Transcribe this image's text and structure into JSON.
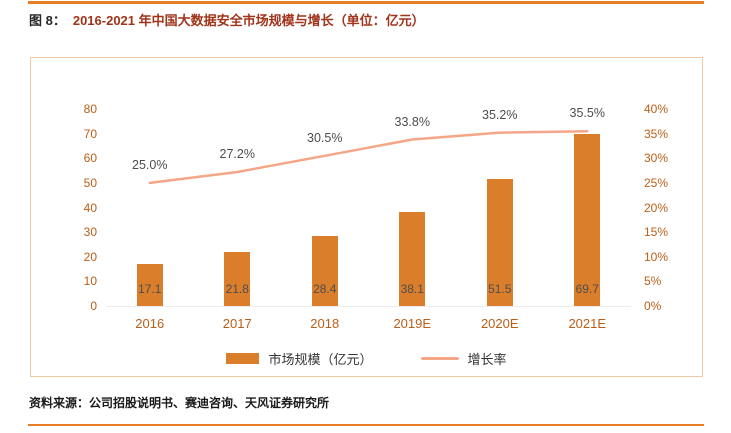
{
  "header": {
    "fig_label": "图 8：",
    "title": "2016-2021 年中国大数据安全市场规模与增长（单位：亿元）"
  },
  "chart_data": {
    "type": "bar+line",
    "title": "2016-2021 年中国大数据安全市场规模与增长（单位：亿元）",
    "categories": [
      "2016",
      "2017",
      "2018",
      "2019E",
      "2020E",
      "2021E"
    ],
    "series": [
      {
        "name": "市场规模（亿元）",
        "type": "bar",
        "axis": "left",
        "values": [
          17.1,
          21.8,
          28.4,
          38.1,
          51.5,
          69.7
        ],
        "labels": [
          "17.1",
          "21.8",
          "28.4",
          "38.1",
          "51.5",
          "69.7"
        ]
      },
      {
        "name": "增长率",
        "type": "line",
        "axis": "right",
        "values": [
          25.0,
          27.2,
          30.5,
          33.8,
          35.2,
          35.5
        ],
        "labels": [
          "25.0%",
          "27.2%",
          "30.5%",
          "33.8%",
          "35.2%",
          "35.5%"
        ]
      }
    ],
    "left_axis": {
      "min": 0,
      "max": 80,
      "step": 10,
      "ticks": [
        "0",
        "10",
        "20",
        "30",
        "40",
        "50",
        "60",
        "70",
        "80"
      ]
    },
    "right_axis": {
      "min": 0,
      "max": 40,
      "step": 5,
      "ticks": [
        "0%",
        "5%",
        "10%",
        "15%",
        "20%",
        "25%",
        "30%",
        "35%",
        "40%"
      ]
    },
    "grid": false,
    "legend_position": "bottom"
  },
  "footer": {
    "source": "资料来源：公司招股说明书、赛迪咨询、天风证券研究所"
  },
  "colors": {
    "bar": "#DA7E2B",
    "line": "#F5A686",
    "accent-rule": "#E87E26",
    "axis-label": "#BC5E16",
    "value-label": "#4D4D4D",
    "title": "#A0341B",
    "fig-label": "#262626",
    "box-border": "#F2C8A2",
    "source": "#1A1A1A"
  }
}
